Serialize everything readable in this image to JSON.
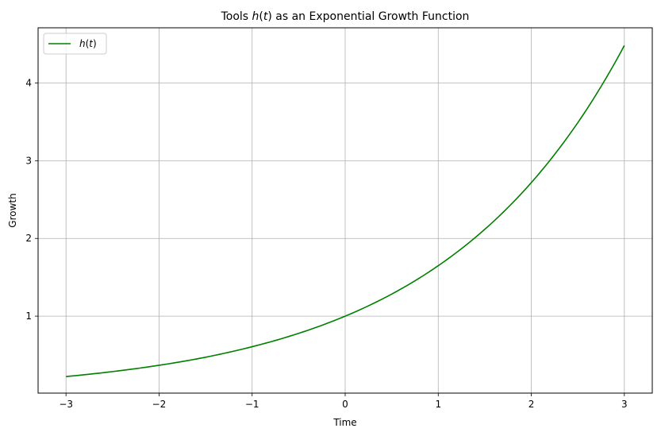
{
  "chart_data": {
    "type": "line",
    "title": "Tools h(t) as an Exponential Growth Function",
    "title_parts": {
      "prefix": "Tools ",
      "func": "h",
      "open": "(",
      "var": "t",
      "close": ")",
      "suffix": " as an Exponential Growth Function"
    },
    "xlabel": "Time",
    "ylabel": "Growth",
    "xlim": [
      -3.3,
      3.3
    ],
    "ylim": [
      0.01,
      4.71
    ],
    "xticks": [
      -3,
      -2,
      -1,
      0,
      1,
      2,
      3
    ],
    "xtick_labels": [
      "−3",
      "−2",
      "−1",
      "0",
      "1",
      "2",
      "3"
    ],
    "yticks": [
      1,
      2,
      3,
      4
    ],
    "ytick_labels": [
      "1",
      "2",
      "3",
      "4"
    ],
    "grid": true,
    "legend_placement": "top-left",
    "series": [
      {
        "name": "h(t)",
        "name_parts": {
          "func": "h",
          "open": "(",
          "var": "t",
          "close": ")"
        },
        "color": "#008000",
        "x": [
          -3.0,
          -2.5,
          -2.0,
          -1.5,
          -1.0,
          -0.5,
          0.0,
          0.5,
          1.0,
          1.5,
          2.0,
          2.5,
          3.0
        ],
        "y": [
          0.223,
          0.287,
          0.368,
          0.472,
          0.607,
          0.779,
          1.0,
          1.284,
          1.649,
          2.117,
          2.718,
          3.49,
          4.482
        ]
      }
    ]
  }
}
